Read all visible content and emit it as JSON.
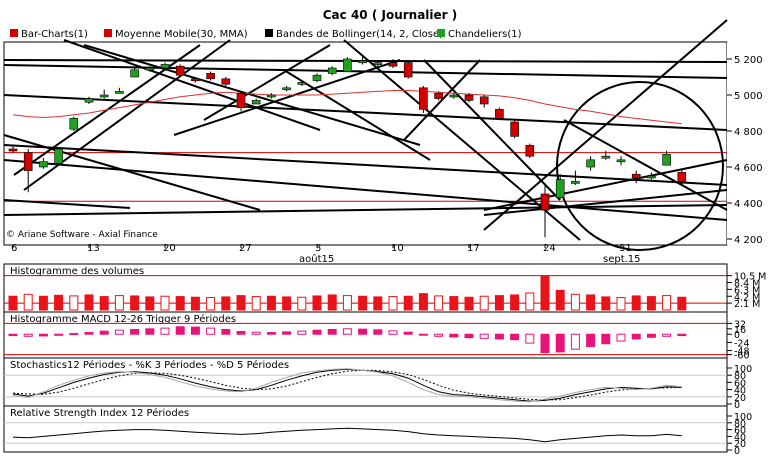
{
  "window": {
    "title": "Cac 40   ( Journalier )"
  },
  "legend": [
    {
      "label": "Bar-Charts(1)",
      "color": "#d40000"
    },
    {
      "label": "Moyenne Mobile(30, MMA)",
      "color": "#d40000"
    },
    {
      "label": "Bandes de Bollinger(14, 2, Close)",
      "color": "#000000"
    },
    {
      "label": "Chandeliers(1)",
      "color": "#20a020"
    }
  ],
  "credit": "© Ariane Software - Axial Finance",
  "chart_data": [
    {
      "type": "candlestick",
      "title": "Cac 40   ( Journalier )",
      "ylim": [
        4200,
        5300
      ],
      "yticks": [
        "5 200",
        "5 000",
        "4 800",
        "4 600",
        "4 400",
        "4 200"
      ],
      "ytick_values": [
        5200,
        5000,
        4800,
        4600,
        4400,
        4200
      ],
      "xticks": [
        {
          "label": "6",
          "index": 0
        },
        {
          "label": "13",
          "index": 5
        },
        {
          "label": "20",
          "index": 10
        },
        {
          "label": "27",
          "index": 15
        },
        {
          "label": "3",
          "index": 20
        },
        {
          "label": "10",
          "index": 25
        },
        {
          "label": "17",
          "index": 30
        },
        {
          "label": "24",
          "index": 35
        },
        {
          "label": "31",
          "index": 40
        }
      ],
      "month_labels": [
        {
          "label": "août15",
          "index": 20
        },
        {
          "label": "sept.15",
          "index": 40
        }
      ],
      "candles": [
        {
          "o": 4700,
          "h": 4720,
          "l": 4680,
          "c": 4690
        },
        {
          "o": 4680,
          "h": 4700,
          "l": 4460,
          "c": 4580
        },
        {
          "o": 4600,
          "h": 4650,
          "l": 4590,
          "c": 4630
        },
        {
          "o": 4620,
          "h": 4710,
          "l": 4610,
          "c": 4700
        },
        {
          "o": 4810,
          "h": 4880,
          "l": 4800,
          "c": 4870
        },
        {
          "o": 4960,
          "h": 4990,
          "l": 4950,
          "c": 4980
        },
        {
          "o": 4990,
          "h": 5030,
          "l": 4980,
          "c": 5000
        },
        {
          "o": 5020,
          "h": 5040,
          "l": 5010,
          "c": 5020
        },
        {
          "o": 5100,
          "h": 5150,
          "l": 5100,
          "c": 5140
        },
        {
          "o": 5150,
          "h": 5160,
          "l": 5130,
          "c": 5150
        },
        {
          "o": 5150,
          "h": 5180,
          "l": 5140,
          "c": 5170
        },
        {
          "o": 5160,
          "h": 5170,
          "l": 5110,
          "c": 5110
        },
        {
          "o": 5090,
          "h": 5100,
          "l": 5070,
          "c": 5080
        },
        {
          "o": 5120,
          "h": 5130,
          "l": 5080,
          "c": 5090
        },
        {
          "o": 5090,
          "h": 5100,
          "l": 5050,
          "c": 5060
        },
        {
          "o": 5010,
          "h": 5020,
          "l": 4910,
          "c": 4930
        },
        {
          "o": 4950,
          "h": 4980,
          "l": 4950,
          "c": 4970
        },
        {
          "o": 4990,
          "h": 5010,
          "l": 4980,
          "c": 5000
        },
        {
          "o": 5030,
          "h": 5050,
          "l": 5020,
          "c": 5040
        },
        {
          "o": 5060,
          "h": 5080,
          "l": 5050,
          "c": 5070
        },
        {
          "o": 5080,
          "h": 5120,
          "l": 5070,
          "c": 5110
        },
        {
          "o": 5120,
          "h": 5160,
          "l": 5110,
          "c": 5150
        },
        {
          "o": 5130,
          "h": 5210,
          "l": 5130,
          "c": 5200
        },
        {
          "o": 5180,
          "h": 5210,
          "l": 5170,
          "c": 5190
        },
        {
          "o": 5170,
          "h": 5190,
          "l": 5150,
          "c": 5180
        },
        {
          "o": 5180,
          "h": 5200,
          "l": 5150,
          "c": 5160
        },
        {
          "o": 5180,
          "h": 5190,
          "l": 5090,
          "c": 5100
        },
        {
          "o": 5040,
          "h": 5050,
          "l": 4900,
          "c": 4920
        },
        {
          "o": 5010,
          "h": 5020,
          "l": 4970,
          "c": 4980
        },
        {
          "o": 4990,
          "h": 5010,
          "l": 4980,
          "c": 5000
        },
        {
          "o": 5000,
          "h": 5010,
          "l": 4960,
          "c": 4970
        },
        {
          "o": 4990,
          "h": 5000,
          "l": 4930,
          "c": 4950
        },
        {
          "o": 4920,
          "h": 4930,
          "l": 4860,
          "c": 4870
        },
        {
          "o": 4850,
          "h": 4860,
          "l": 4760,
          "c": 4770
        },
        {
          "o": 4720,
          "h": 4730,
          "l": 4650,
          "c": 4660
        },
        {
          "o": 4450,
          "h": 4510,
          "l": 4210,
          "c": 4360
        },
        {
          "o": 4430,
          "h": 4560,
          "l": 4420,
          "c": 4530
        },
        {
          "o": 4520,
          "h": 4580,
          "l": 4500,
          "c": 4520
        },
        {
          "o": 4600,
          "h": 4660,
          "l": 4580,
          "c": 4640
        },
        {
          "o": 4660,
          "h": 4690,
          "l": 4640,
          "c": 4660
        },
        {
          "o": 4640,
          "h": 4660,
          "l": 4610,
          "c": 4640
        },
        {
          "o": 4560,
          "h": 4580,
          "l": 4510,
          "c": 4540
        },
        {
          "o": 4550,
          "h": 4570,
          "l": 4530,
          "c": 4550
        },
        {
          "o": 4610,
          "h": 4690,
          "l": 4610,
          "c": 4670
        },
        {
          "o": 4570,
          "h": 4590,
          "l": 4500,
          "c": 4520
        }
      ],
      "moving_average": [
        4890,
        4880,
        4875,
        4880,
        4890,
        4900,
        4915,
        4930,
        4945,
        4960,
        4975,
        4990,
        5000,
        5010,
        5015,
        5010,
        5005,
        5000,
        5000,
        5000,
        5000,
        5005,
        5010,
        5015,
        5020,
        5025,
        5025,
        5020,
        5015,
        5010,
        5005,
        5000,
        4995,
        4985,
        4970,
        4950,
        4935,
        4920,
        4910,
        4895,
        4880,
        4870,
        4860,
        4850,
        4840
      ],
      "horizontal_levels": [
        4680,
        4410
      ],
      "level_color": "#d40000"
    },
    {
      "type": "bar",
      "title": "Histogramme des volumes",
      "yticks": [
        "10.5 M",
        "8.4 M",
        "6.3 M",
        "4.2 M",
        "2.1 M"
      ],
      "ytick_values": [
        10.5,
        8.4,
        6.3,
        4.2,
        2.1
      ],
      "ylim": [
        0,
        11
      ],
      "values": [
        4.2,
        4.8,
        4.2,
        4.5,
        4.3,
        4.6,
        4.1,
        4.4,
        4.3,
        4.0,
        4.2,
        4.1,
        3.9,
        3.8,
        4.0,
        4.4,
        4.1,
        4.2,
        4.0,
        3.9,
        4.3,
        4.6,
        4.4,
        4.2,
        4.0,
        4.1,
        4.2,
        5.0,
        4.3,
        4.1,
        3.9,
        4.2,
        4.4,
        4.6,
        5.2,
        10.4,
        6.0,
        4.8,
        4.6,
        4.0,
        3.8,
        4.3,
        4.1,
        4.4,
        3.9
      ],
      "bar_color": "#e8141a",
      "level_color": "#d40000"
    },
    {
      "type": "bar",
      "title": "Histogramme MACD 12-26   Trigger 9 Périodes",
      "yticks": [
        "32",
        "16",
        "0",
        "-24",
        "-48",
        "-60"
      ],
      "ytick_values": [
        32,
        16,
        0,
        -24,
        -48,
        -60
      ],
      "ylim": [
        -64,
        36
      ],
      "values": [
        -4,
        -6,
        -5,
        -3,
        2,
        5,
        9,
        12,
        14,
        16,
        18,
        22,
        21,
        18,
        14,
        8,
        6,
        5,
        7,
        9,
        12,
        14,
        16,
        15,
        13,
        10,
        6,
        -2,
        -6,
        -8,
        -10,
        -12,
        -14,
        -16,
        -26,
        -54,
        -52,
        -44,
        -36,
        -28,
        -20,
        -14,
        -9,
        -6,
        -4
      ],
      "bar_color": "#e8147a",
      "level_color": "#d40000"
    },
    {
      "type": "line",
      "title": "Stochastics12 Périodes   -   %K 3 Périodes   -   %D 5 Périodes",
      "yticks": [
        "100",
        "80",
        "60",
        "40",
        "20",
        "0"
      ],
      "ytick_values": [
        100,
        80,
        60,
        40,
        20,
        0
      ],
      "ylim": [
        0,
        100
      ],
      "series": [
        {
          "name": "%K",
          "values": [
            28,
            22,
            30,
            45,
            60,
            72,
            82,
            88,
            90,
            86,
            80,
            70,
            58,
            48,
            40,
            36,
            40,
            52,
            66,
            78,
            88,
            94,
            96,
            94,
            90,
            84,
            72,
            52,
            34,
            26,
            24,
            20,
            16,
            12,
            8,
            10,
            16,
            26,
            34,
            42,
            46,
            44,
            42,
            48,
            46
          ],
          "color": "#000000"
        },
        {
          "name": "%D",
          "values": [
            30,
            28,
            27,
            33,
            44,
            56,
            68,
            78,
            85,
            87,
            85,
            80,
            72,
            62,
            52,
            44,
            40,
            42,
            50,
            62,
            74,
            84,
            91,
            94,
            93,
            89,
            82,
            68,
            52,
            38,
            30,
            25,
            21,
            17,
            13,
            11,
            12,
            18,
            25,
            33,
            39,
            42,
            43,
            45,
            46
          ],
          "color": "#000000",
          "style": "dotted"
        },
        {
          "name": "stoch-gray",
          "values": [
            24,
            18,
            34,
            52,
            66,
            78,
            86,
            90,
            88,
            82,
            74,
            62,
            50,
            42,
            36,
            34,
            44,
            60,
            74,
            86,
            92,
            96,
            98,
            94,
            88,
            78,
            60,
            40,
            26,
            22,
            20,
            16,
            12,
            8,
            6,
            14,
            22,
            32,
            40,
            46,
            44,
            40,
            44,
            52,
            48
          ],
          "color": "#aaaaaa"
        }
      ]
    },
    {
      "type": "line",
      "title": "Relative Strength Index 12 Périodes",
      "yticks": [
        "100",
        "80",
        "60",
        "40",
        "20",
        "0"
      ],
      "ytick_values": [
        100,
        80,
        60,
        40,
        20,
        0
      ],
      "ylim": [
        0,
        100
      ],
      "series": [
        {
          "values": [
            38,
            36,
            40,
            44,
            48,
            52,
            56,
            58,
            60,
            60,
            58,
            55,
            52,
            50,
            48,
            46,
            48,
            52,
            55,
            58,
            60,
            62,
            64,
            62,
            60,
            58,
            54,
            48,
            44,
            42,
            40,
            38,
            36,
            34,
            30,
            24,
            30,
            34,
            38,
            42,
            44,
            42,
            42,
            46,
            42
          ],
          "color": "#000000"
        }
      ]
    }
  ]
}
